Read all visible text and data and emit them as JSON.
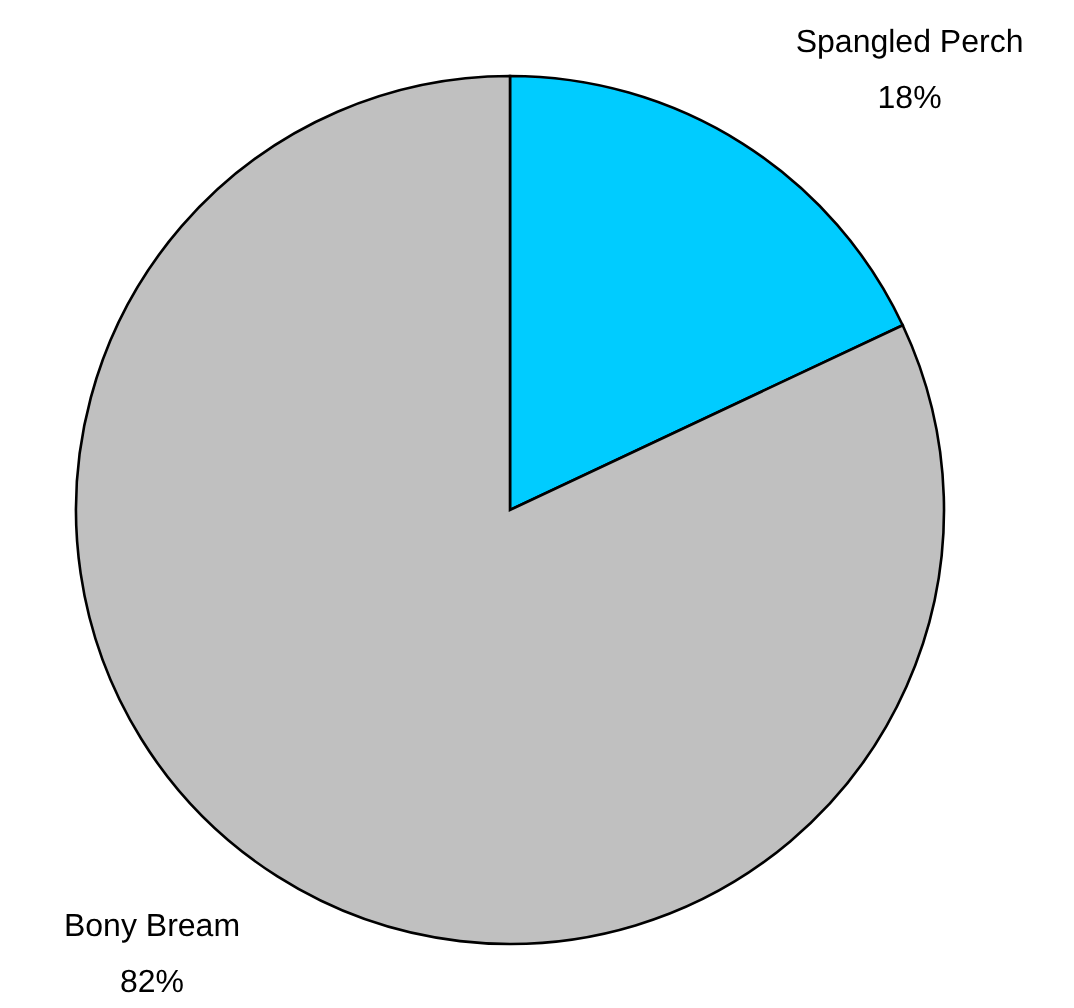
{
  "chart_data": {
    "type": "pie",
    "categories": [
      "Spangled Perch",
      "Bony Bream"
    ],
    "values": [
      18,
      82
    ],
    "value_labels": [
      "18%",
      "82%"
    ],
    "colors": [
      "#00ccff",
      "#c0c0c0"
    ]
  }
}
